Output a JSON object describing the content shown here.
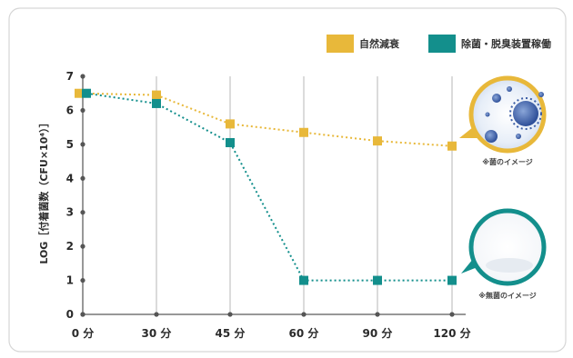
{
  "chart_data": {
    "type": "line",
    "categories": [
      "0 分",
      "30 分",
      "45 分",
      "60 分",
      "90 分",
      "120 分"
    ],
    "series": [
      {
        "name": "自然減衰",
        "color": "#e8b83a",
        "values": [
          6.5,
          6.45,
          5.6,
          5.35,
          5.1,
          4.95
        ]
      },
      {
        "name": "除菌・脱臭装置稼働",
        "color": "#138f8c",
        "values": [
          6.5,
          6.2,
          5.05,
          1.0,
          1.0,
          1.0
        ]
      }
    ],
    "ylabel": "LOG［付着菌数（CFU×10⁴）］",
    "ylim": [
      0,
      7
    ],
    "yticks": [
      0,
      1,
      2,
      3,
      4,
      5,
      6,
      7
    ],
    "grid": "vertical",
    "legend_position": "top-right",
    "annotations": [
      {
        "text": "※菌のイメージ",
        "icon": "bacteria-image",
        "ring_color": "#e8b83a"
      },
      {
        "text": "※無菌のイメージ",
        "icon": "sterile-image",
        "ring_color": "#138f8c"
      }
    ]
  }
}
